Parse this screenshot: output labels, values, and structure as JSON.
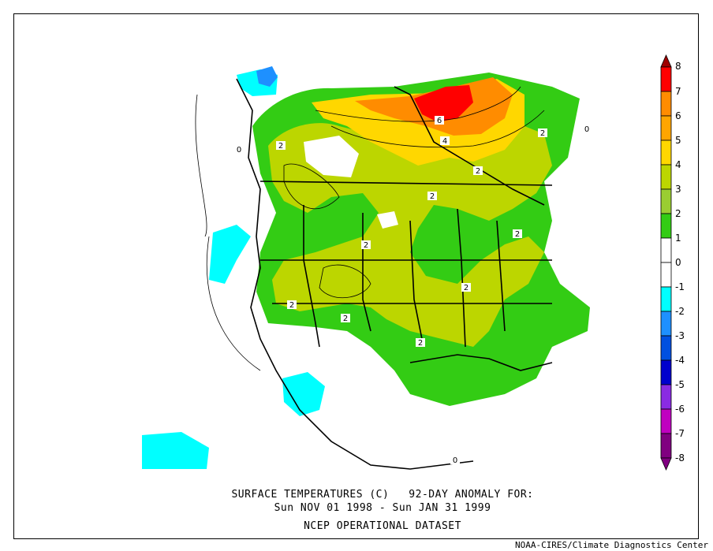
{
  "map": {
    "title_line1": "SURFACE TEMPERATURES (C)   92-DAY ANOMALY FOR:",
    "title_line2": "Sun NOV 01 1998 - Sun JAN 31 1999",
    "title_line3": "NCEP OPERATIONAL DATASET",
    "credit": "NOAA-CIRES/Climate Diagnostics Center",
    "contour_labels": [
      "2",
      "2",
      "2",
      "2",
      "2",
      "2",
      "2",
      "2",
      "2",
      "2",
      "4",
      "6",
      "0",
      "0",
      "0"
    ]
  },
  "legend": {
    "levels": [
      {
        "label": "8",
        "color": "#a00000"
      },
      {
        "label": "7",
        "color": "#ff0000"
      },
      {
        "label": "6",
        "color": "#ff8c00"
      },
      {
        "label": "5",
        "color": "#ffa500"
      },
      {
        "label": "4",
        "color": "#ffd700"
      },
      {
        "label": "3",
        "color": "#bcd600"
      },
      {
        "label": "2",
        "color": "#9acd32"
      },
      {
        "label": "1",
        "color": "#33cc14"
      },
      {
        "label": "0",
        "color": "#ffffff"
      },
      {
        "label": "-1",
        "color": "#ffffff"
      },
      {
        "label": "-2",
        "color": "#00ffff"
      },
      {
        "label": "-3",
        "color": "#1e90ff"
      },
      {
        "label": "-4",
        "color": "#0050e0"
      },
      {
        "label": "-5",
        "color": "#0000cd"
      },
      {
        "label": "-6",
        "color": "#8a2be2"
      },
      {
        "label": "-7",
        "color": "#c000c0"
      },
      {
        "label": "-8",
        "color": "#800080"
      }
    ]
  }
}
